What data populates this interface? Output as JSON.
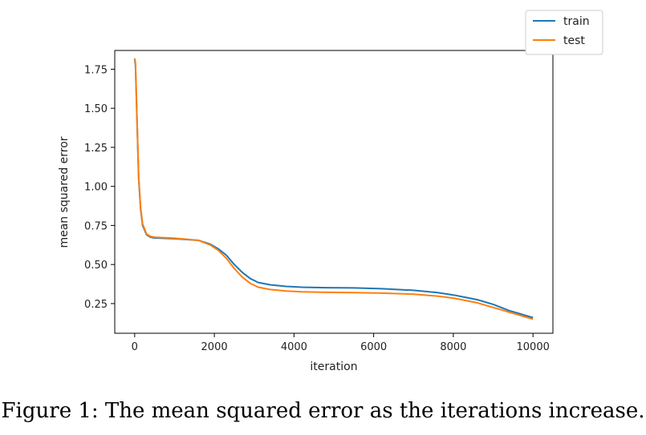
{
  "caption": "Figure 1: The mean squared error as the iterations increase.",
  "chart_data": {
    "type": "line",
    "xlabel": "iteration",
    "ylabel": "mean squared error",
    "xlim": [
      -500,
      10500
    ],
    "ylim": [
      0.06,
      1.87
    ],
    "xticks": [
      0,
      2000,
      4000,
      6000,
      8000,
      10000
    ],
    "xtick_labels": [
      "0",
      "2000",
      "4000",
      "6000",
      "8000",
      "10000"
    ],
    "yticks": [
      0.25,
      0.5,
      0.75,
      1.0,
      1.25,
      1.5,
      1.75
    ],
    "ytick_labels": [
      "0.25",
      "0.50",
      "0.75",
      "1.00",
      "1.25",
      "1.50",
      "1.75"
    ],
    "grid": false,
    "legend_position": "upper-right-outside",
    "series": [
      {
        "name": "train",
        "color": "#1f77b4",
        "x": [
          0,
          20,
          50,
          100,
          150,
          200,
          300,
          400,
          500,
          700,
          1000,
          1300,
          1600,
          1900,
          2100,
          2300,
          2500,
          2700,
          2900,
          3100,
          3400,
          3800,
          4200,
          4800,
          5500,
          6200,
          7000,
          7600,
          8000,
          8300,
          8600,
          8800,
          9000,
          9200,
          9400,
          9600,
          9800,
          10000
        ],
        "y": [
          1.81,
          1.78,
          1.5,
          1.05,
          0.85,
          0.75,
          0.69,
          0.675,
          0.67,
          0.668,
          0.665,
          0.66,
          0.655,
          0.63,
          0.6,
          0.56,
          0.5,
          0.45,
          0.41,
          0.385,
          0.37,
          0.36,
          0.355,
          0.352,
          0.35,
          0.345,
          0.335,
          0.32,
          0.305,
          0.29,
          0.275,
          0.26,
          0.245,
          0.225,
          0.205,
          0.19,
          0.175,
          0.16
        ]
      },
      {
        "name": "test",
        "color": "#ff7f0e",
        "x": [
          0,
          20,
          50,
          100,
          150,
          200,
          300,
          400,
          500,
          700,
          1000,
          1300,
          1600,
          1900,
          2100,
          2300,
          2500,
          2700,
          2900,
          3100,
          3400,
          3800,
          4200,
          4800,
          5500,
          6200,
          7000,
          7600,
          8000,
          8300,
          8600,
          8800,
          9000,
          9200,
          9400,
          9600,
          9800,
          10000
        ],
        "y": [
          1.82,
          1.79,
          1.52,
          1.06,
          0.86,
          0.76,
          0.695,
          0.68,
          0.675,
          0.672,
          0.668,
          0.662,
          0.655,
          0.625,
          0.59,
          0.54,
          0.475,
          0.42,
          0.38,
          0.355,
          0.34,
          0.33,
          0.325,
          0.322,
          0.32,
          0.317,
          0.31,
          0.298,
          0.285,
          0.27,
          0.255,
          0.24,
          0.225,
          0.21,
          0.195,
          0.18,
          0.165,
          0.15
        ]
      }
    ]
  }
}
